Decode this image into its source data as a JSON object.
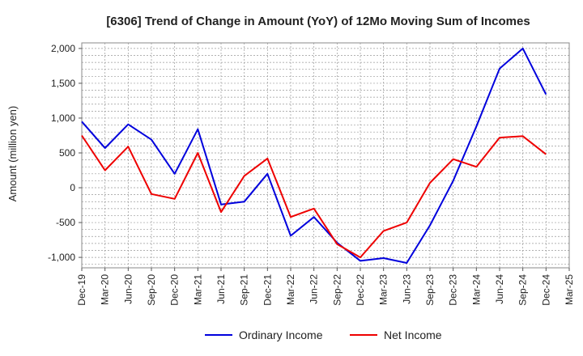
{
  "chart_data": {
    "type": "line",
    "title": "[6306]  Trend of Change in Amount (YoY) of 12Mo Moving Sum of Incomes",
    "ylabel": "Amount (million yen)",
    "xlabel": "",
    "ylim": [
      -1150,
      2080
    ],
    "yticks": [
      -1000,
      -500,
      0,
      500,
      1000,
      1500,
      2000
    ],
    "ytick_labels": [
      "-1,000",
      "-500",
      "0",
      "500",
      "1,000",
      "1,500",
      "2,000"
    ],
    "categories": [
      "Dec-19",
      "Mar-20",
      "Jun-20",
      "Sep-20",
      "Dec-20",
      "Mar-21",
      "Jun-21",
      "Sep-21",
      "Dec-21",
      "Mar-22",
      "Jun-22",
      "Sep-22",
      "Dec-22",
      "Mar-23",
      "Jun-23",
      "Sep-23",
      "Dec-23",
      "Mar-24",
      "Jun-24",
      "Sep-24",
      "Dec-24",
      "Mar-25"
    ],
    "grid": true,
    "legend_position": "bottom-center",
    "series": [
      {
        "name": "Ordinary Income",
        "color": "#0000dd",
        "values": [
          950,
          570,
          910,
          690,
          200,
          840,
          -240,
          -200,
          200,
          -690,
          -420,
          -790,
          -1050,
          -1010,
          -1080,
          -540,
          100,
          880,
          1710,
          2000,
          1340,
          null
        ]
      },
      {
        "name": "Net Income",
        "color": "#ee0000",
        "values": [
          750,
          250,
          590,
          -90,
          -160,
          500,
          -350,
          170,
          420,
          -420,
          -300,
          -810,
          -1000,
          -620,
          -500,
          70,
          410,
          300,
          720,
          740,
          480,
          null
        ]
      }
    ]
  }
}
